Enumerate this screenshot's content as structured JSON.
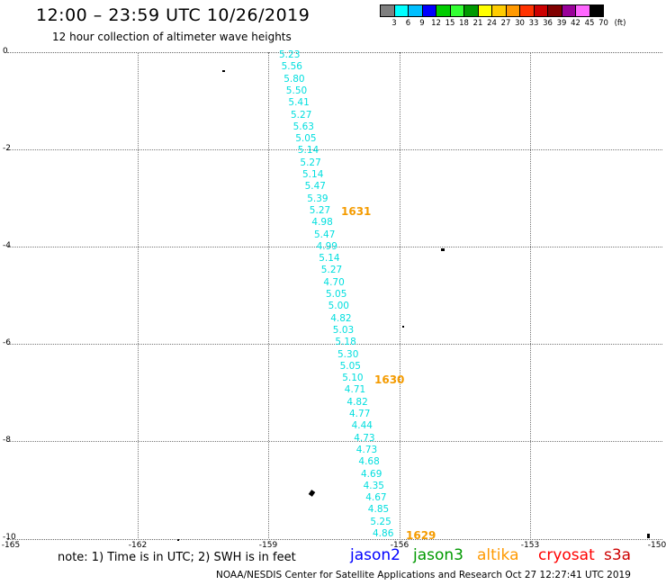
{
  "header": {
    "title": "12:00 – 23:59 UTC 10/26/2019",
    "subtitle": "12 hour collection of altimeter wave heights"
  },
  "colorbar": {
    "colors": [
      "#7f7f7f",
      "#00ffff",
      "#00bfff",
      "#0000ff",
      "#00cc00",
      "#33ff33",
      "#009900",
      "#ffff00",
      "#ffcc00",
      "#ff9900",
      "#ff3300",
      "#cc0000",
      "#800000",
      "#990099",
      "#ff66ff",
      "#000000"
    ],
    "labels": [
      "3",
      "6",
      "9",
      "12",
      "15",
      "18",
      "21",
      "24",
      "27",
      "30",
      "33",
      "36",
      "39",
      "42",
      "45",
      "70",
      "(ft)"
    ]
  },
  "axes": {
    "y_labels": [
      "0",
      "-2",
      "-4",
      "-6",
      "-8",
      "-10"
    ],
    "x_labels": [
      "-165",
      "-162",
      "-159",
      "-156",
      "-153",
      "-150"
    ]
  },
  "swh_values": [
    "5.23",
    "5.56",
    "5.80",
    "5.50",
    "5.41",
    "5.27",
    "5.63",
    "5.05",
    "5.14",
    "5.27",
    "5.14",
    "5.47",
    "5.39",
    "5.27",
    "4.98",
    "5.47",
    "4.99",
    "5.14",
    "5.27",
    "4.70",
    "5.05",
    "5.00",
    "4.82",
    "5.03",
    "5.18",
    "5.30",
    "5.05",
    "5.10",
    "4.71",
    "4.82",
    "4.77",
    "4.44",
    "4.73",
    "4.73",
    "4.68",
    "4.69",
    "4.35",
    "4.67",
    "4.85",
    "5.25",
    "4.86"
  ],
  "time_labels": [
    "1631",
    "1630",
    "1629"
  ],
  "footer": {
    "note": "note: 1) Time is in UTC; 2) SWH is in feet",
    "legend": [
      {
        "name": "jason2",
        "color": "#0000ff"
      },
      {
        "name": "jason3",
        "color": "#009900"
      },
      {
        "name": "altika",
        "color": "#ff9900"
      },
      {
        "name": "cryosat",
        "color": "#ff0000"
      },
      {
        "name": "s3a",
        "color": "#cc0000"
      }
    ],
    "credit": "NOAA/NESDIS Center for Satellite Applications and Research    Oct 27 12:27:41 UTC 2019"
  }
}
